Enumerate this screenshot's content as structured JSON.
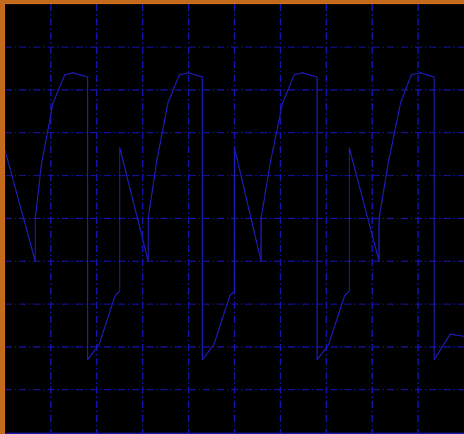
{
  "chart_data": {
    "type": "line",
    "title": "",
    "xlabel": "",
    "ylabel": "",
    "grid": true,
    "legend": "none",
    "xlim": [
      0,
      10
    ],
    "ylim": [
      -5,
      5
    ],
    "x_divisions": 10,
    "y_divisions": 10,
    "series": [
      {
        "points": [
          [
            0.0,
            1.6
          ],
          [
            0.66,
            -1.0
          ],
          [
            0.66,
            0.0
          ],
          [
            0.8,
            1.3
          ],
          [
            1.05,
            2.7
          ],
          [
            1.3,
            3.35
          ],
          [
            1.48,
            3.4
          ],
          [
            1.8,
            3.3
          ],
          [
            1.8,
            -3.3
          ],
          [
            2.05,
            -2.95
          ],
          [
            2.4,
            -1.8
          ],
          [
            2.5,
            -1.7
          ],
          [
            2.5,
            1.65
          ],
          [
            3.12,
            -1.0
          ],
          [
            3.12,
            0.0
          ],
          [
            3.3,
            1.3
          ],
          [
            3.55,
            2.7
          ],
          [
            3.8,
            3.35
          ],
          [
            4.0,
            3.4
          ],
          [
            4.3,
            3.3
          ],
          [
            4.3,
            -3.3
          ],
          [
            4.55,
            -2.95
          ],
          [
            4.9,
            -1.8
          ],
          [
            5.0,
            -1.7
          ],
          [
            5.0,
            1.65
          ],
          [
            5.58,
            -1.0
          ],
          [
            5.58,
            0.0
          ],
          [
            5.78,
            1.3
          ],
          [
            6.05,
            2.7
          ],
          [
            6.3,
            3.35
          ],
          [
            6.48,
            3.4
          ],
          [
            6.8,
            3.3
          ],
          [
            6.8,
            -3.3
          ],
          [
            7.05,
            -2.95
          ],
          [
            7.4,
            -1.8
          ],
          [
            7.5,
            -1.7
          ],
          [
            7.5,
            1.65
          ],
          [
            8.15,
            -1.0
          ],
          [
            8.15,
            0.0
          ],
          [
            8.35,
            1.3
          ],
          [
            8.62,
            2.7
          ],
          [
            8.85,
            3.35
          ],
          [
            9.05,
            3.4
          ],
          [
            9.35,
            3.3
          ],
          [
            9.35,
            -3.3
          ],
          [
            9.7,
            -2.7
          ],
          [
            10.0,
            -2.75
          ]
        ]
      }
    ],
    "colors": {
      "background": "#000000",
      "frame": "#c46a1c",
      "grid": "#1414b4",
      "trace": "#1c1cb8"
    }
  }
}
